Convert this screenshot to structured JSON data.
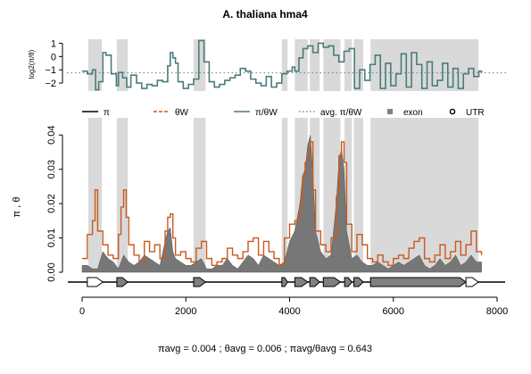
{
  "chart_data": [
    {
      "type": "line",
      "title": "A. thaliana hma4",
      "ylabel": "log2(π/θ)",
      "yticks": [
        "1",
        "0",
        "−1",
        "−2"
      ],
      "ylim": [
        -2.6,
        1.3
      ],
      "xlim": [
        0,
        8000
      ],
      "grid": false,
      "reference_line": {
        "name": "avg. π/θW",
        "value": -1.22,
        "style": "dotted",
        "color": "#7f8c8d"
      },
      "series": [
        {
          "name": "π/θW",
          "color": "#4a7c7a",
          "x": [
            0,
            100,
            200,
            260,
            320,
            400,
            460,
            560,
            660,
            700,
            780,
            860,
            940,
            1050,
            1150,
            1250,
            1350,
            1450,
            1550,
            1650,
            1700,
            1750,
            1800,
            1850,
            1950,
            2050,
            2150,
            2250,
            2350,
            2450,
            2550,
            2650,
            2750,
            2850,
            2950,
            3050,
            3150,
            3250,
            3350,
            3450,
            3550,
            3650,
            3750,
            3850,
            3950,
            4050,
            4100,
            4180,
            4260,
            4350,
            4450,
            4550,
            4650,
            4750,
            4850,
            4950,
            5050,
            5150,
            5250,
            5350,
            5450,
            5550,
            5650,
            5750,
            5850,
            5950,
            6050,
            6150,
            6250,
            6350,
            6450,
            6550,
            6650,
            6750,
            6850,
            6950,
            7050,
            7150,
            7250,
            7350,
            7450,
            7550,
            7650,
            7700
          ],
          "y": [
            -1.1,
            -1.3,
            -1.0,
            -2.5,
            -1.9,
            0.3,
            0.1,
            -1.3,
            -2.2,
            -1.2,
            -1.6,
            -2.3,
            -1.4,
            -2.0,
            -2.4,
            -2.1,
            -2.2,
            -1.8,
            -1.9,
            -0.7,
            0.3,
            -0.1,
            -0.5,
            -1.9,
            -2.4,
            -2.1,
            -1.7,
            1.2,
            -0.4,
            -1.9,
            -2.3,
            -2.1,
            -1.8,
            -1.6,
            -1.4,
            -0.9,
            -1.1,
            -1.7,
            -2.0,
            -2.2,
            -1.5,
            -2.3,
            -2.0,
            -1.3,
            -1.1,
            -0.8,
            -1.1,
            -0.1,
            0.6,
            0.8,
            0.3,
            1.0,
            0.7,
            0.8,
            0.1,
            -0.4,
            0.4,
            0.6,
            -2.4,
            -1.0,
            -1.8,
            -0.6,
            0.1,
            -2.4,
            -0.5,
            -2.2,
            -1.3,
            0.2,
            -2.3,
            0.3,
            -0.6,
            -2.4,
            -0.4,
            -2.2,
            -1.8,
            -0.5,
            -2.3,
            -0.9,
            -2.4,
            -1.3,
            -0.9,
            -1.5,
            -1.1,
            -1.2
          ]
        }
      ]
    },
    {
      "type": "line",
      "ylabel": "π , θ",
      "xlim": [
        0,
        8000
      ],
      "ylim": [
        0,
        0.045
      ],
      "yticks": [
        "0.00",
        "0.01",
        "0.02",
        "0.03",
        "0.04"
      ],
      "xticks": [
        "0",
        "2000",
        "4000",
        "6000",
        "8000"
      ],
      "grid": false,
      "legend": {
        "placement": "top",
        "items": [
          {
            "label": "π",
            "symbol": "line",
            "color": "#000000"
          },
          {
            "label": "θW",
            "symbol": "dashed",
            "color": "#c85a1e"
          },
          {
            "label": "π/θW",
            "symbol": "line",
            "color": "#4a7c7a"
          },
          {
            "label": "avg. π/θW",
            "symbol": "dotted",
            "color": "#7f8c8d"
          },
          {
            "label": "exon",
            "symbol": "square",
            "color": "#808080"
          },
          {
            "label": "UTR",
            "symbol": "circle",
            "color": "#000000"
          }
        ]
      },
      "exon_regions": [
        [
          120,
          380
        ],
        [
          670,
          880
        ],
        [
          2150,
          2380
        ],
        [
          3850,
          3960
        ],
        [
          4100,
          4350
        ],
        [
          4390,
          4580
        ],
        [
          4650,
          4980
        ],
        [
          5060,
          5200
        ],
        [
          5240,
          5420
        ],
        [
          5560,
          7640
        ]
      ],
      "series": [
        {
          "name": "π",
          "color": "#6e6e6e",
          "x": [
            0,
            100,
            200,
            300,
            400,
            500,
            600,
            700,
            800,
            900,
            1000,
            1100,
            1200,
            1300,
            1400,
            1500,
            1600,
            1650,
            1700,
            1750,
            1800,
            1900,
            2000,
            2100,
            2200,
            2300,
            2400,
            2500,
            2600,
            2700,
            2800,
            2900,
            3000,
            3100,
            3200,
            3300,
            3400,
            3500,
            3600,
            3700,
            3800,
            3900,
            4000,
            4100,
            4200,
            4250,
            4300,
            4350,
            4400,
            4450,
            4500,
            4600,
            4700,
            4800,
            4900,
            4950,
            5000,
            5050,
            5100,
            5200,
            5300,
            5400,
            5500,
            5600,
            5700,
            5800,
            5900,
            6000,
            6100,
            6200,
            6300,
            6400,
            6500,
            6600,
            6700,
            6800,
            6900,
            7000,
            7100,
            7200,
            7300,
            7400,
            7500,
            7600,
            7700
          ],
          "y": [
            0.002,
            0.002,
            0.001,
            0.001,
            0.006,
            0.004,
            0.003,
            0.001,
            0.005,
            0.003,
            0.002,
            0.003,
            0.005,
            0.004,
            0.003,
            0.002,
            0.009,
            0.012,
            0.013,
            0.006,
            0.004,
            0.003,
            0.002,
            0.002,
            0.003,
            0.004,
            0.001,
            0.001,
            0.002,
            0.002,
            0.004,
            0.002,
            0.001,
            0.003,
            0.005,
            0.004,
            0.002,
            0.005,
            0.004,
            0.003,
            0.002,
            0.003,
            0.009,
            0.012,
            0.02,
            0.028,
            0.03,
            0.037,
            0.04,
            0.028,
            0.012,
            0.006,
            0.004,
            0.005,
            0.02,
            0.032,
            0.036,
            0.03,
            0.012,
            0.004,
            0.005,
            0.003,
            0.002,
            0.002,
            0.003,
            0.002,
            0.001,
            0.002,
            0.003,
            0.002,
            0.003,
            0.004,
            0.005,
            0.002,
            0.001,
            0.002,
            0.004,
            0.002,
            0.003,
            0.005,
            0.002,
            0.003,
            0.005,
            0.003,
            0.003
          ]
        },
        {
          "name": "θW",
          "color": "#c85a1e",
          "x": [
            0,
            100,
            200,
            250,
            300,
            400,
            500,
            600,
            700,
            750,
            800,
            850,
            900,
            1000,
            1100,
            1200,
            1300,
            1400,
            1500,
            1600,
            1650,
            1700,
            1750,
            1800,
            1900,
            2000,
            2100,
            2200,
            2300,
            2400,
            2500,
            2600,
            2700,
            2800,
            2900,
            3000,
            3100,
            3200,
            3300,
            3400,
            3500,
            3600,
            3700,
            3800,
            3900,
            4000,
            4100,
            4200,
            4250,
            4300,
            4350,
            4400,
            4450,
            4500,
            4600,
            4700,
            4800,
            4900,
            4950,
            5000,
            5050,
            5100,
            5200,
            5300,
            5400,
            5500,
            5600,
            5700,
            5800,
            5900,
            6000,
            6100,
            6200,
            6300,
            6400,
            6500,
            6600,
            6700,
            6800,
            6900,
            7000,
            7100,
            7200,
            7300,
            7400,
            7500,
            7600,
            7700
          ],
          "y": [
            0.004,
            0.011,
            0.015,
            0.024,
            0.012,
            0.008,
            0.005,
            0.004,
            0.011,
            0.019,
            0.024,
            0.016,
            0.008,
            0.005,
            0.003,
            0.009,
            0.006,
            0.008,
            0.004,
            0.012,
            0.016,
            0.017,
            0.01,
            0.005,
            0.006,
            0.004,
            0.003,
            0.007,
            0.009,
            0.004,
            0.002,
            0.003,
            0.004,
            0.007,
            0.005,
            0.004,
            0.006,
            0.009,
            0.01,
            0.005,
            0.009,
            0.006,
            0.004,
            0.002,
            0.01,
            0.014,
            0.015,
            0.02,
            0.028,
            0.032,
            0.034,
            0.038,
            0.024,
            0.012,
            0.008,
            0.006,
            0.01,
            0.022,
            0.034,
            0.038,
            0.032,
            0.014,
            0.006,
            0.011,
            0.008,
            0.004,
            0.003,
            0.005,
            0.003,
            0.002,
            0.004,
            0.005,
            0.004,
            0.007,
            0.009,
            0.01,
            0.004,
            0.003,
            0.005,
            0.008,
            0.004,
            0.006,
            0.009,
            0.005,
            0.008,
            0.012,
            0.006,
            0.005
          ]
        }
      ],
      "gene_model": {
        "utr_regions": [
          [
            100,
            400
          ],
          [
            7400,
            7640
          ]
        ],
        "exons": [
          [
            670,
            880
          ],
          [
            2150,
            2380
          ],
          [
            3850,
            3960
          ],
          [
            4100,
            4350
          ],
          [
            4390,
            4580
          ],
          [
            4650,
            4980
          ],
          [
            5060,
            5200
          ],
          [
            5240,
            5420
          ],
          [
            5560,
            7400
          ]
        ]
      }
    }
  ],
  "footer_formula": "πavg = 0.004 ;  θavg = 0.006 ;  πavg/θavg = 0.643"
}
